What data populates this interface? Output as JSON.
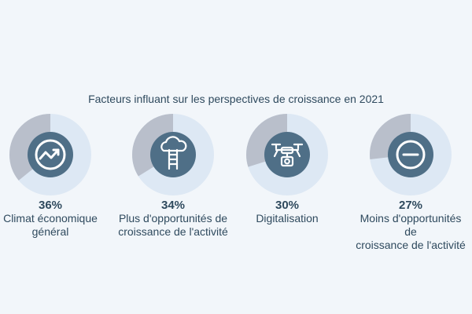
{
  "colors": {
    "background": "#f2f6fa",
    "ring_track": "#dde8f4",
    "ring_fill": "#b9bfcb",
    "center": "#4f6f87",
    "icon": "#ffffff",
    "text": "#2f4a5e"
  },
  "chart_data": {
    "type": "pie",
    "title": "Facteurs influant sur les perspectives de croissance en 2021",
    "items": [
      {
        "value": 36,
        "value_label": "36%",
        "label": "Climat économique\ngénéral",
        "icon": "trend-up-icon"
      },
      {
        "value": 34,
        "value_label": "34%",
        "label": "Plus d'opportunités de\ncroissance de l'activité",
        "icon": "cloud-ladder-icon"
      },
      {
        "value": 30,
        "value_label": "30%",
        "label": "Digitalisation",
        "icon": "drone-icon"
      },
      {
        "value": 27,
        "value_label": "27%",
        "label": "Moins d'opportunités de\ncroissance de l'activité",
        "icon": "minus-circle-icon"
      }
    ]
  }
}
